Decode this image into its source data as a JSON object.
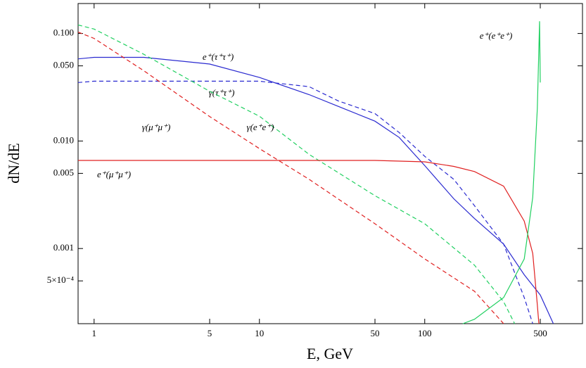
{
  "chart_data": {
    "type": "line",
    "x_label": "E, GeV",
    "y_label": "dN/dE",
    "log_x": true,
    "log_y": true,
    "xlim": [
      0.8,
      900
    ],
    "ylim": [
      0.0002,
      0.19
    ],
    "xticks": [
      1,
      5,
      10,
      50,
      100,
      500
    ],
    "yticks": [
      {
        "value": 0.1,
        "label": "0.100"
      },
      {
        "value": 0.05,
        "label": "0.050"
      },
      {
        "value": 0.01,
        "label": "0.010"
      },
      0.005,
      0.001,
      {
        "value": 0.0005,
        "label": "5×10⁻⁴"
      }
    ],
    "series": [
      {
        "name": "e⁺(τ⁺τ⁺)",
        "color": "#2a2ad0",
        "style": "solid",
        "x": [
          0.8,
          1,
          2,
          5,
          10,
          20,
          30,
          50,
          70,
          100,
          150,
          200,
          300,
          400,
          500,
          600
        ],
        "values": [
          0.058,
          0.06,
          0.06,
          0.052,
          0.039,
          0.027,
          0.021,
          0.0153,
          0.0108,
          0.0059,
          0.0029,
          0.0019,
          0.0011,
          0.00057,
          0.00037,
          0.0002
        ]
      },
      {
        "name": "γ(τ⁺τ⁺)",
        "color": "#2a2ad0",
        "style": "dashed",
        "x": [
          0.8,
          1,
          3,
          10,
          20,
          30,
          50,
          70,
          100,
          150,
          200,
          300,
          400,
          450
        ],
        "values": [
          0.035,
          0.036,
          0.036,
          0.036,
          0.032,
          0.0236,
          0.018,
          0.012,
          0.0072,
          0.0044,
          0.0025,
          0.0011,
          0.00035,
          0.0002
        ]
      },
      {
        "name": "γ(μ⁺μ⁺)",
        "color": "#e02020",
        "style": "dashed",
        "x": [
          0.8,
          1,
          2,
          5,
          10,
          20,
          50,
          100,
          200,
          300
        ],
        "values": [
          0.103,
          0.09,
          0.045,
          0.0169,
          0.0085,
          0.0044,
          0.0017,
          0.0008,
          0.0004,
          0.0002
        ]
      },
      {
        "name": "γ(e⁺e⁺)",
        "color": "#20d060",
        "style": "dashed",
        "x": [
          0.8,
          1,
          2,
          5,
          10,
          20,
          50,
          100,
          200,
          300,
          350
        ],
        "values": [
          0.12,
          0.11,
          0.064,
          0.029,
          0.017,
          0.0075,
          0.0031,
          0.0017,
          0.0007,
          0.00032,
          0.0002
        ]
      },
      {
        "name": "e⁺(μ⁺μ⁺)",
        "color": "#e02020",
        "style": "solid",
        "x": [
          0.8,
          50,
          100,
          150,
          200,
          300,
          400,
          450,
          480,
          490
        ],
        "values": [
          0.0066,
          0.0066,
          0.0064,
          0.0058,
          0.0052,
          0.0038,
          0.0018,
          0.0009,
          0.0003,
          0.0002
        ]
      },
      {
        "name": "e⁺(e⁺e⁺)",
        "color": "#20d060",
        "style": "solid",
        "x": [
          170,
          200,
          300,
          400,
          450,
          480,
          495,
          500
        ],
        "values": [
          0.0002,
          0.00022,
          0.00035,
          0.0008,
          0.003,
          0.02,
          0.13,
          0.035
        ]
      }
    ]
  }
}
